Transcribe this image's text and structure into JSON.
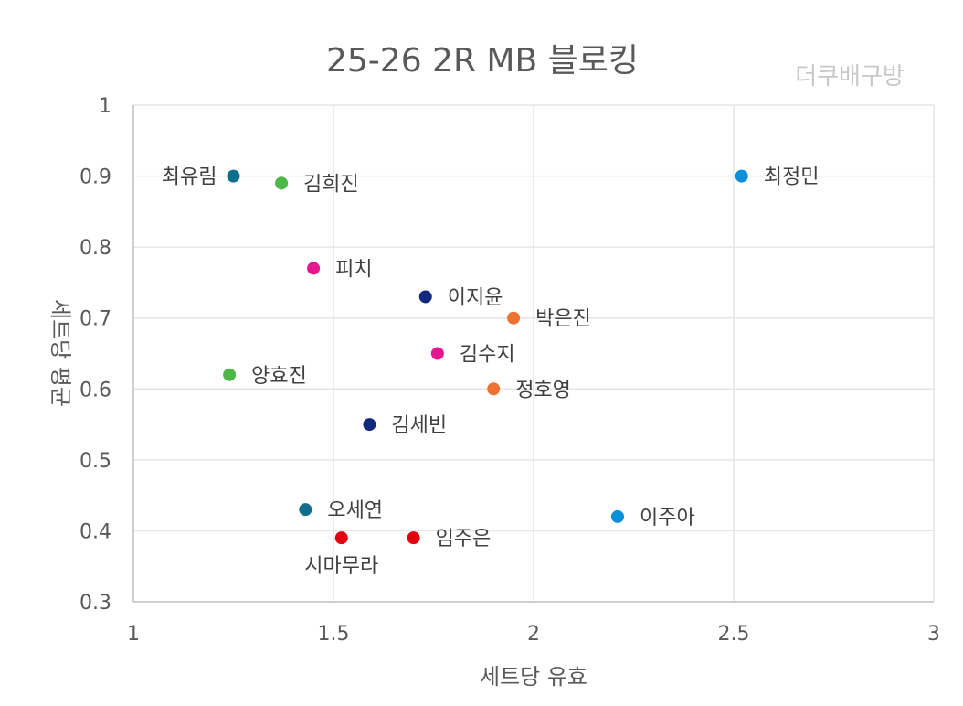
{
  "chart_data": {
    "type": "scatter",
    "title": "25-26  2R MB 블로킹",
    "watermark": "더쿠배구방",
    "xlabel": "세트당 유효",
    "ylabel": "세트당 평균",
    "xlim": [
      1,
      3
    ],
    "ylim": [
      0.3,
      1
    ],
    "xticks": [
      "1",
      "1.5",
      "2",
      "2.5",
      "3"
    ],
    "yticks": [
      "0.3",
      "0.4",
      "0.5",
      "0.6",
      "0.7",
      "0.8",
      "0.9",
      "1"
    ],
    "grid": true,
    "points": [
      {
        "label": "최유림",
        "x": 1.25,
        "y": 0.9,
        "color": "#0e6e8c",
        "label_pos": "left"
      },
      {
        "label": "김희진",
        "x": 1.37,
        "y": 0.89,
        "color": "#4cb848",
        "label_pos": "right"
      },
      {
        "label": "최정민",
        "x": 2.52,
        "y": 0.9,
        "color": "#0b8fd8",
        "label_pos": "right"
      },
      {
        "label": "피치",
        "x": 1.45,
        "y": 0.77,
        "color": "#e6168f",
        "label_pos": "right"
      },
      {
        "label": "이지윤",
        "x": 1.73,
        "y": 0.73,
        "color": "#13297e",
        "label_pos": "right"
      },
      {
        "label": "박은진",
        "x": 1.95,
        "y": 0.7,
        "color": "#ed7231",
        "label_pos": "right"
      },
      {
        "label": "김수지",
        "x": 1.76,
        "y": 0.65,
        "color": "#e6168f",
        "label_pos": "right"
      },
      {
        "label": "양효진",
        "x": 1.24,
        "y": 0.62,
        "color": "#4cb848",
        "label_pos": "right"
      },
      {
        "label": "정호영",
        "x": 1.9,
        "y": 0.6,
        "color": "#ed7231",
        "label_pos": "right"
      },
      {
        "label": "김세빈",
        "x": 1.59,
        "y": 0.55,
        "color": "#13297e",
        "label_pos": "right"
      },
      {
        "label": "오세연",
        "x": 1.43,
        "y": 0.43,
        "color": "#0e6e8c",
        "label_pos": "right"
      },
      {
        "label": "이주아",
        "x": 2.21,
        "y": 0.42,
        "color": "#0b8fd8",
        "label_pos": "right"
      },
      {
        "label": "시마무라",
        "x": 1.52,
        "y": 0.39,
        "color": "#e3000f",
        "label_pos": "below"
      },
      {
        "label": "임주은",
        "x": 1.7,
        "y": 0.39,
        "color": "#e3000f",
        "label_pos": "right"
      }
    ]
  }
}
